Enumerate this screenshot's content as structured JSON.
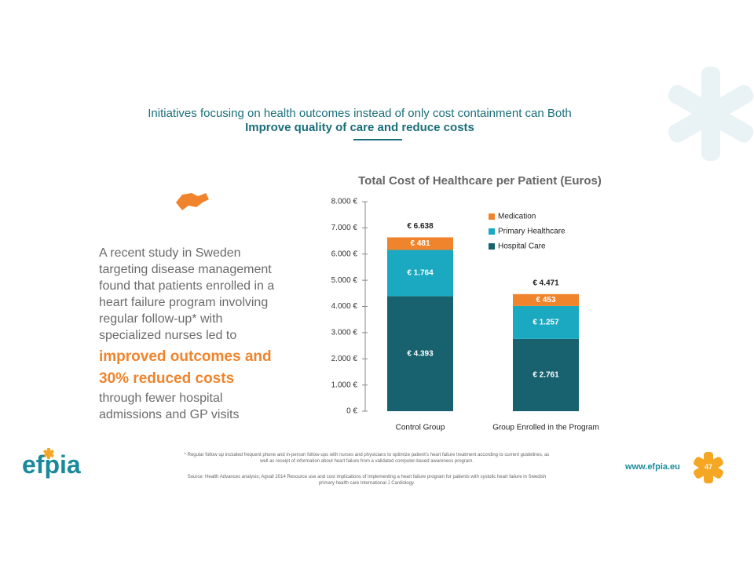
{
  "heading": {
    "line1": "Initiatives focusing on health outcomes instead of only cost containment can Both",
    "line2": "Improve quality of care and reduce costs"
  },
  "body": {
    "intro": "A recent study in Sweden targeting disease management found that patients enrolled in a heart failure program involving regular follow-up* with specialized nurses led to",
    "highlight": "improved outcomes and 30% reduced costs",
    "outro": "through fewer hospital admissions and GP visits"
  },
  "footnote": "* Regular follow up included frequent phone and in-person follow-ups with nurses and physicians to optimize patient's heart failure treatment according to current guidelines, as well as receipt of information about heart failure from a validated computer-based awareness program.",
  "source": "Source: Health Advances analysis; Agvall 2014 Resource use and cost implications of implementing a heart failure program for patients with systolic heart failure in Swedish primary health care International J Cardiology.",
  "logo": "efpia",
  "url": "www.efpia.eu",
  "page_number": "47",
  "chart_data": {
    "type": "stacked-bar",
    "title": "Total Cost of Healthcare per Patient (Euros)",
    "categories": [
      "Control Group",
      "Group Enrolled in the Program"
    ],
    "series": [
      {
        "name": "Hospital Care",
        "color": "#17626e",
        "values": [
          4393,
          2761
        ],
        "value_labels": [
          "€ 4.393",
          "€ 2.761"
        ]
      },
      {
        "name": "Primary Healthcare",
        "color": "#1ba9c1",
        "values": [
          1764,
          1257
        ],
        "value_labels": [
          "€ 1.764",
          "€ 1.257"
        ]
      },
      {
        "name": "Medication",
        "color": "#f0842c",
        "values": [
          481,
          453
        ],
        "value_labels": [
          "€ 481",
          "€ 453"
        ]
      }
    ],
    "totals": {
      "values": [
        6638,
        4471
      ],
      "value_labels": [
        "€ 6.638",
        "€ 4.471"
      ]
    },
    "ylim": [
      0,
      8000
    ],
    "yticks": [
      {
        "value": 0,
        "label": "0 €"
      },
      {
        "value": 1000,
        "label": "1.000 €"
      },
      {
        "value": 2000,
        "label": "2.000 €"
      },
      {
        "value": 3000,
        "label": "3.000 €"
      },
      {
        "value": 4000,
        "label": "4.000 €"
      },
      {
        "value": 5000,
        "label": "5.000 €"
      },
      {
        "value": 6000,
        "label": "6.000 €"
      },
      {
        "value": 7000,
        "label": "7.000 €"
      },
      {
        "value": 8000,
        "label": "8.000 €"
      }
    ],
    "legend": "top-right"
  }
}
